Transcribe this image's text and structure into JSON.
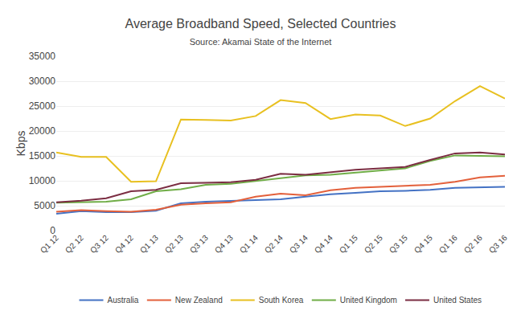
{
  "chart_data": {
    "type": "line",
    "title": "Average Broadband Speed, Selected Countries",
    "subtitle": "Source: Akamai State of the Internet",
    "y_label": "Kbps",
    "categories": [
      "Q1 12",
      "Q2 12",
      "Q3 12",
      "Q4 12",
      "Q1 13",
      "Q2 13",
      "Q3 13",
      "Q4 13",
      "Q1 14",
      "Q2 14",
      "Q3 14",
      "Q4 14",
      "Q1 15",
      "Q2 15",
      "Q3 15",
      "Q4 15",
      "Q1 16",
      "Q2 16",
      "Q3 16"
    ],
    "series": [
      {
        "name": "Australia",
        "color": "#4472c4",
        "values": [
          3400,
          3900,
          3700,
          3700,
          4000,
          5500,
          5800,
          6000,
          6100,
          6300,
          6800,
          7300,
          7600,
          7900,
          8000,
          8200,
          8600,
          8700,
          8800
        ]
      },
      {
        "name": "New Zealand",
        "color": "#e3603b",
        "values": [
          3800,
          4100,
          3900,
          3800,
          4200,
          5200,
          5500,
          5700,
          6800,
          7400,
          7100,
          8100,
          8600,
          8800,
          9000,
          9200,
          9800,
          10700,
          11000
        ]
      },
      {
        "name": "South Korea",
        "color": "#e8c020",
        "values": [
          15700,
          14800,
          14800,
          9800,
          9900,
          22300,
          22200,
          22100,
          23000,
          26200,
          25600,
          22400,
          23300,
          23100,
          21000,
          22500,
          26000,
          29000,
          26500
        ]
      },
      {
        "name": "United Kingdom",
        "color": "#70ad47",
        "values": [
          5600,
          5700,
          5800,
          6300,
          7900,
          8300,
          9200,
          9400,
          10000,
          10600,
          11100,
          11200,
          11600,
          12000,
          12500,
          14000,
          15100,
          15000,
          14900
        ]
      },
      {
        "name": "United States",
        "color": "#7b2d42",
        "values": [
          5700,
          6000,
          6500,
          7900,
          8200,
          9500,
          9600,
          9700,
          10200,
          11400,
          11200,
          11700,
          12200,
          12500,
          12800,
          14200,
          15500,
          15700,
          15300
        ]
      }
    ],
    "ylim": [
      0,
      35000
    ],
    "yticks": [
      0,
      5000,
      10000,
      15000,
      20000,
      25000,
      30000,
      35000
    ],
    "grid": true,
    "legend": "bottom"
  }
}
